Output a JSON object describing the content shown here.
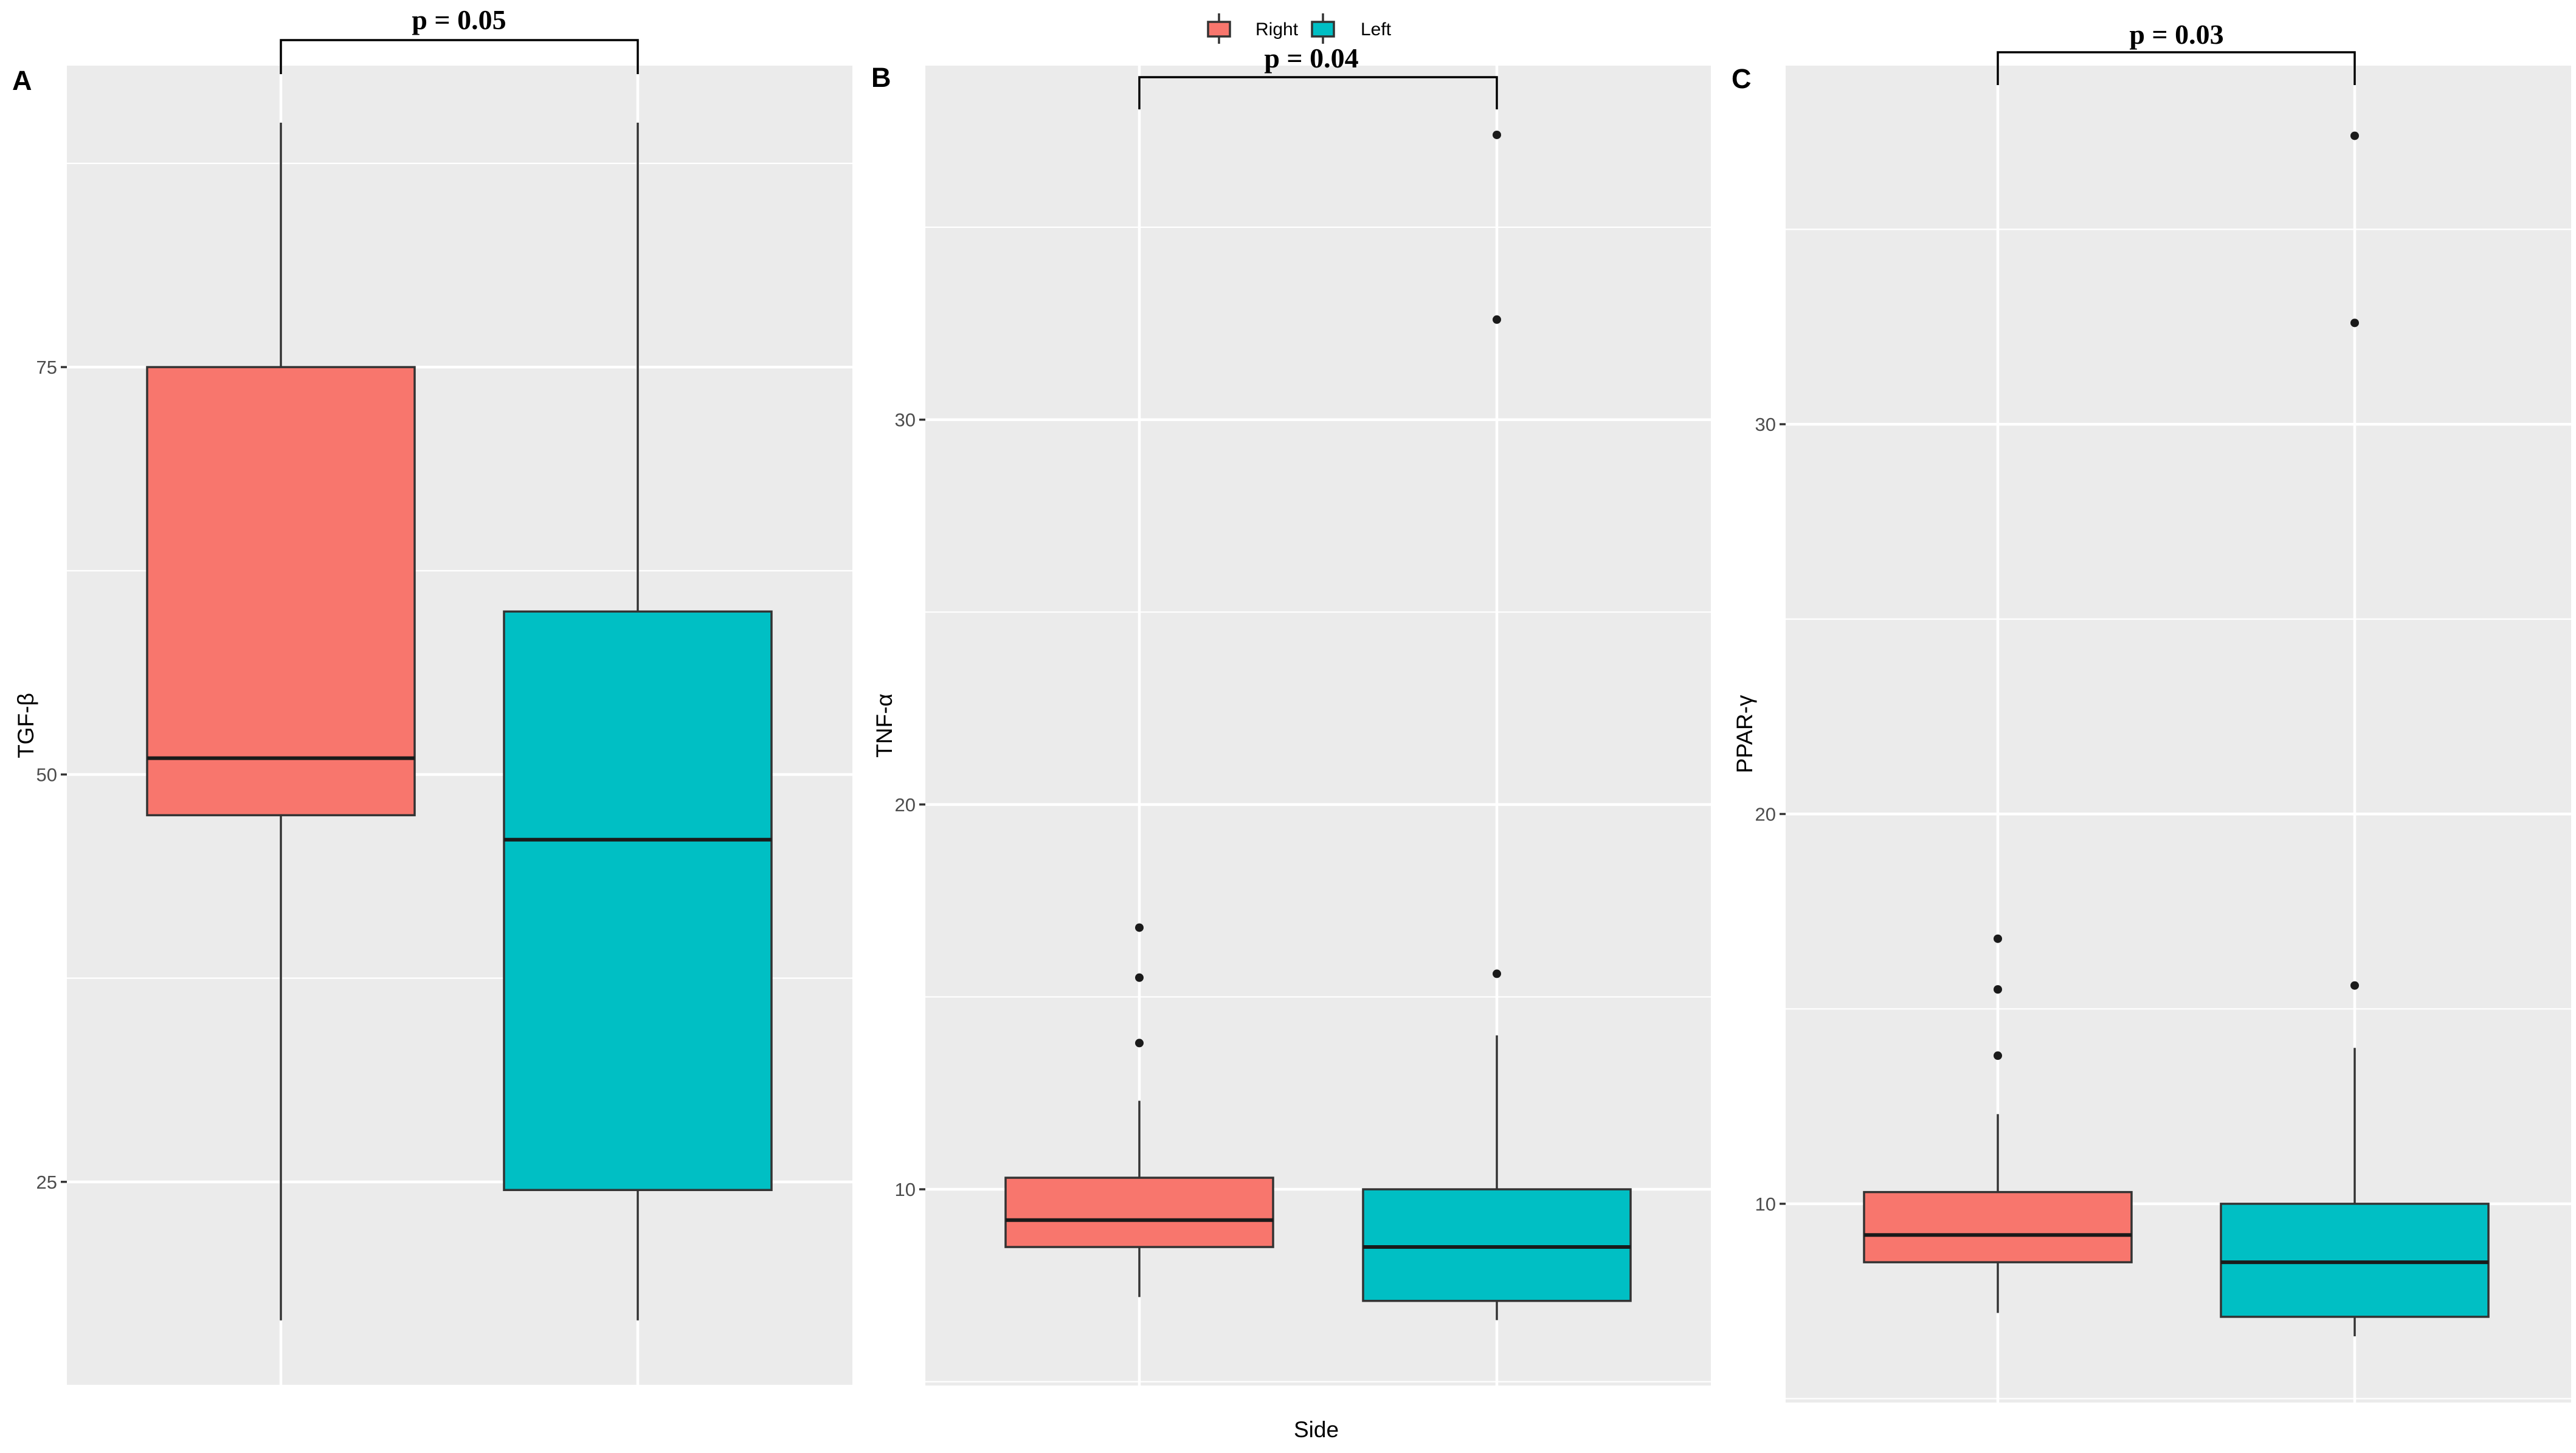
{
  "chart_data": [
    {
      "panel": "A",
      "type": "boxplot",
      "ylabel": "TGF-β",
      "yticks": [
        25,
        50,
        75
      ],
      "ylim": [
        12.5,
        93.5
      ],
      "categories": [
        "Right",
        "Left"
      ],
      "boxes": [
        {
          "name": "Right",
          "min": 16.5,
          "q1": 47.5,
          "median": 51,
          "q3": 75,
          "max": 90,
          "outliers": []
        },
        {
          "name": "Left",
          "min": 16.5,
          "q1": 24.5,
          "median": 46,
          "q3": 60,
          "max": 90,
          "outliers": []
        }
      ],
      "pvalue": "p = 0.05"
    },
    {
      "panel": "B",
      "type": "boxplot",
      "ylabel": "TNF-α",
      "yticks": [
        10,
        20,
        30
      ],
      "ylim": [
        4.9,
        39.2
      ],
      "categories": [
        "Right",
        "Left"
      ],
      "boxes": [
        {
          "name": "Right",
          "min": 7.2,
          "q1": 8.5,
          "median": 9.2,
          "q3": 10.3,
          "max": 12.3,
          "outliers": [
            13.8,
            15.5,
            16.8
          ]
        },
        {
          "name": "Left",
          "min": 6.6,
          "q1": 7.1,
          "median": 8.5,
          "q3": 10,
          "max": 14,
          "outliers": [
            15.6,
            32.6,
            37.4
          ]
        }
      ],
      "pvalue": "p = 0.04"
    },
    {
      "panel": "C",
      "type": "boxplot",
      "ylabel": "PPAR-γ",
      "yticks": [
        10,
        20,
        30
      ],
      "ylim": [
        4.9,
        39.2
      ],
      "categories": [
        "Right",
        "Left"
      ],
      "boxes": [
        {
          "name": "Right",
          "min": 7.2,
          "q1": 8.5,
          "median": 9.2,
          "q3": 10.3,
          "max": 12.3,
          "outliers": [
            13.8,
            15.5,
            16.8
          ]
        },
        {
          "name": "Left",
          "min": 6.6,
          "q1": 7.1,
          "median": 8.5,
          "q3": 10,
          "max": 14,
          "outliers": [
            15.6,
            32.6,
            37.4
          ]
        }
      ],
      "pvalue": "p = 0.03"
    }
  ],
  "legend": {
    "items": [
      {
        "label": "Right",
        "color": "#F8766D"
      },
      {
        "label": "Left",
        "color": "#00BFC4"
      }
    ]
  },
  "xlabel": "Side"
}
